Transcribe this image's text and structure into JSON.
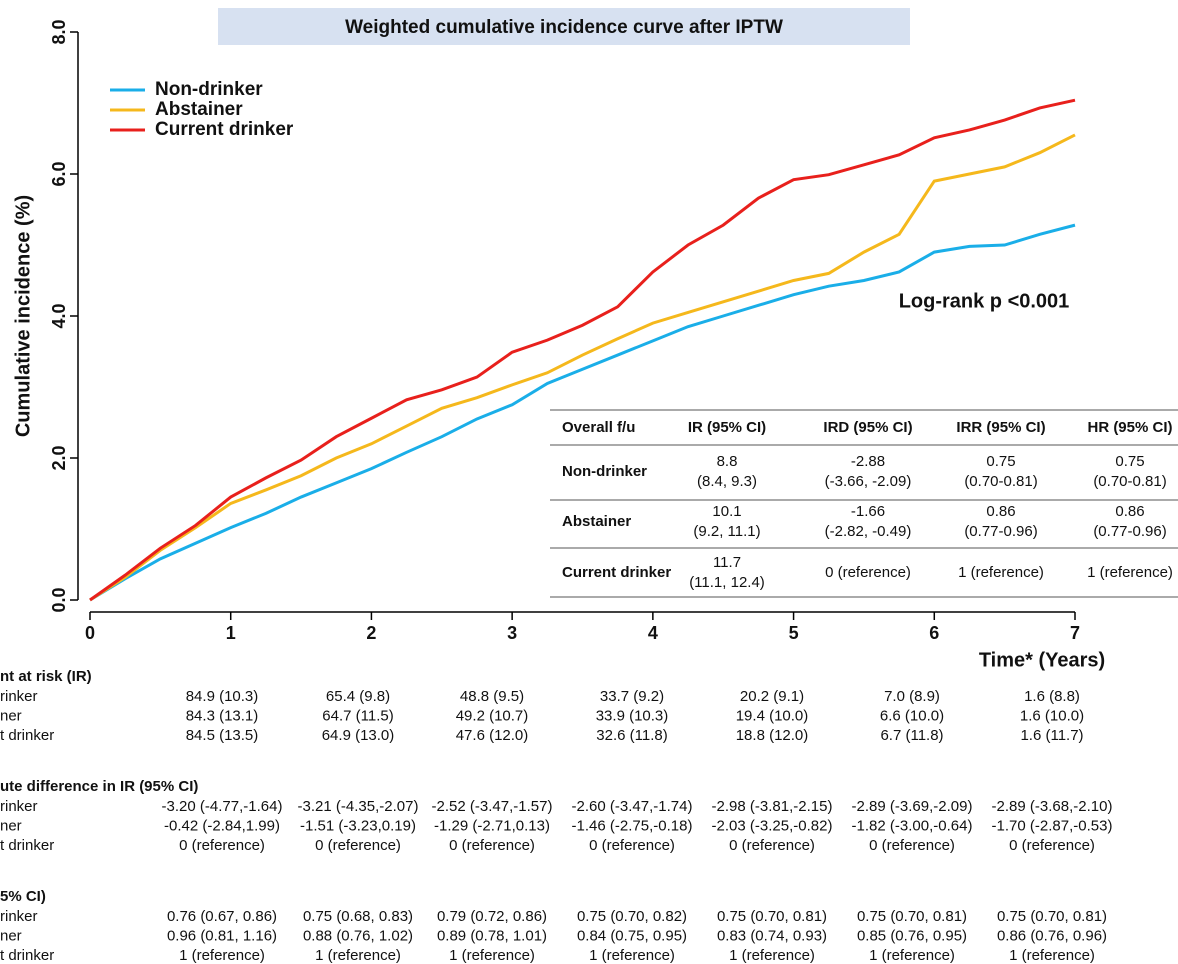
{
  "chart_data": {
    "type": "line",
    "title": "Weighted cumulative incidence curve after IPTW",
    "xlabel": "Time* (Years)",
    "ylabel": "Cumulative incidence (%)",
    "annotation": "Log-rank p <0.001",
    "x": [
      0,
      0.25,
      0.5,
      0.75,
      1,
      1.25,
      1.5,
      1.75,
      2,
      2.25,
      2.5,
      2.75,
      3,
      3.25,
      3.5,
      3.75,
      4,
      4.25,
      4.5,
      4.75,
      5,
      5.25,
      5.5,
      5.75,
      6,
      6.25,
      6.5,
      6.75,
      7
    ],
    "series": [
      {
        "name": "Non-drinker",
        "color": "#1aaee8",
        "values": [
          0,
          0.3,
          0.58,
          0.8,
          1.02,
          1.22,
          1.45,
          1.65,
          1.85,
          2.08,
          2.3,
          2.55,
          2.75,
          3.05,
          3.25,
          3.45,
          3.65,
          3.85,
          4.0,
          4.15,
          4.3,
          4.42,
          4.5,
          4.62,
          4.9,
          4.98,
          5.0,
          5.15,
          5.28
        ]
      },
      {
        "name": "Abstainer",
        "color": "#f5b81c",
        "values": [
          0,
          0.32,
          0.7,
          1.02,
          1.36,
          1.55,
          1.75,
          2.0,
          2.2,
          2.45,
          2.7,
          2.85,
          3.03,
          3.2,
          3.45,
          3.68,
          3.9,
          4.05,
          4.2,
          4.35,
          4.5,
          4.6,
          4.9,
          5.15,
          5.9,
          6.0,
          6.1,
          6.3,
          6.55
        ]
      },
      {
        "name": "Current drinker",
        "color": "#e8201c",
        "values": [
          0,
          0.35,
          0.73,
          1.05,
          1.45,
          1.72,
          1.97,
          2.3,
          2.56,
          2.82,
          2.96,
          3.14,
          3.49,
          3.66,
          3.87,
          4.13,
          4.62,
          5.0,
          5.28,
          5.66,
          5.92,
          5.99,
          6.13,
          6.27,
          6.51,
          6.62,
          6.76,
          6.93,
          7.04
        ]
      }
    ],
    "xlim": [
      0,
      7
    ],
    "xticks": [
      0,
      1,
      2,
      3,
      4,
      5,
      6,
      7
    ],
    "ylim": [
      0,
      8
    ],
    "yticks": [
      {
        "value": 0,
        "label": "0.0"
      },
      {
        "value": 2,
        "label": "2.0"
      },
      {
        "value": 4,
        "label": "4.0"
      },
      {
        "value": 6,
        "label": "6.0"
      },
      {
        "value": 8,
        "label": "8.0"
      }
    ]
  },
  "inset_table": {
    "header": [
      "Overall f/u",
      "IR (95% CI)",
      "IRD (95% CI)",
      "IRR (95% CI)",
      "HR (95% CI)"
    ],
    "rows": [
      {
        "label": "Non-drinker",
        "cells": [
          [
            "8.8",
            "(8.4, 9.3)"
          ],
          [
            "-2.88",
            "(-3.66, -2.09)"
          ],
          [
            "0.75",
            "(0.70-0.81)"
          ],
          [
            "0.75",
            "(0.70-0.81)"
          ]
        ]
      },
      {
        "label": "Abstainer",
        "cells": [
          [
            "10.1",
            "(9.2, 11.1)"
          ],
          [
            "-1.66",
            "(-2.82, -0.49)"
          ],
          [
            "0.86",
            "(0.77-0.96)"
          ],
          [
            "0.86",
            "(0.77-0.96)"
          ]
        ]
      },
      {
        "label": "Current drinker",
        "cells": [
          [
            "11.7",
            "(11.1, 12.4)"
          ],
          [
            "0 (reference)"
          ],
          [
            "1 (reference)"
          ],
          [
            "1 (reference)"
          ]
        ]
      }
    ]
  },
  "risk_tables": [
    {
      "title": "nt at risk (IR)",
      "rows": [
        {
          "label": "rinker",
          "values": [
            "84.9 (10.3)",
            "65.4 (9.8)",
            "48.8 (9.5)",
            "33.7 (9.2)",
            "20.2 (9.1)",
            "7.0 (8.9)",
            "1.6 (8.8)"
          ]
        },
        {
          "label": "ner",
          "values": [
            "84.3 (13.1)",
            "64.7 (11.5)",
            "49.2 (10.7)",
            "33.9 (10.3)",
            "19.4 (10.0)",
            "6.6 (10.0)",
            "1.6 (10.0)"
          ]
        },
        {
          "label": "t drinker",
          "values": [
            "84.5 (13.5)",
            "64.9 (13.0)",
            "47.6 (12.0)",
            "32.6 (11.8)",
            "18.8 (12.0)",
            "6.7 (11.8)",
            "1.6 (11.7)"
          ]
        }
      ]
    },
    {
      "title": "ute difference in IR (95% CI)",
      "rows": [
        {
          "label": "rinker",
          "values": [
            "-3.20 (-4.77,-1.64)",
            "-3.21 (-4.35,-2.07)",
            "-2.52 (-3.47,-1.57)",
            "-2.60 (-3.47,-1.74)",
            "-2.98 (-3.81,-2.15)",
            "-2.89 (-3.69,-2.09)",
            "-2.89 (-3.68,-2.10)"
          ]
        },
        {
          "label": "ner",
          "values": [
            "-0.42 (-2.84,1.99)",
            "-1.51 (-3.23,0.19)",
            "-1.29 (-2.71,0.13)",
            "-1.46 (-2.75,-0.18)",
            "-2.03 (-3.25,-0.82)",
            "-1.82 (-3.00,-0.64)",
            "-1.70 (-2.87,-0.53)"
          ]
        },
        {
          "label": "t drinker",
          "values": [
            "0 (reference)",
            "0 (reference)",
            "0 (reference)",
            "0 (reference)",
            "0 (reference)",
            "0 (reference)",
            "0 (reference)"
          ]
        }
      ]
    },
    {
      "title": "5% CI)",
      "rows": [
        {
          "label": "rinker",
          "values": [
            "0.76 (0.67, 0.86)",
            "0.75 (0.68, 0.83)",
            "0.79 (0.72, 0.86)",
            "0.75 (0.70, 0.82)",
            "0.75 (0.70, 0.81)",
            "0.75 (0.70, 0.81)",
            "0.75 (0.70, 0.81)"
          ]
        },
        {
          "label": "ner",
          "values": [
            "0.96 (0.81, 1.16)",
            "0.88 (0.76, 1.02)",
            "0.89 (0.78, 1.01)",
            "0.84 (0.75, 0.95)",
            "0.83 (0.74, 0.93)",
            "0.85 (0.76, 0.95)",
            "0.86 (0.76, 0.96)"
          ]
        },
        {
          "label": "t drinker",
          "values": [
            "1 (reference)",
            "1 (reference)",
            "1 (reference)",
            "1 (reference)",
            "1 (reference)",
            "1 (reference)",
            "1 (reference)"
          ]
        }
      ]
    }
  ]
}
